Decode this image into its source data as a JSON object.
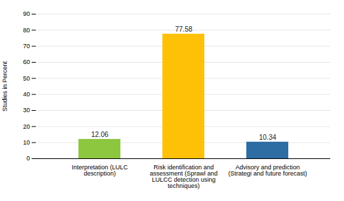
{
  "chart_data": {
    "type": "bar",
    "categories": [
      "Interpretation (LULC\ndescription)",
      "Risk identification and\nassessment (Sprawl and\nLULCC detection using\ntechniques)",
      "Advisory and prediction\n(Strategi and future forecast)"
    ],
    "values": [
      12.06,
      77.58,
      10.34
    ],
    "colors": [
      "#8dc63f",
      "#ffc107",
      "#2e6da4"
    ],
    "ylabel": "Studies in Percent",
    "ylim": [
      0,
      90
    ],
    "yticks": [
      0,
      10,
      20,
      30,
      40,
      50,
      60,
      70,
      80,
      90
    ],
    "grid": true,
    "data_labels": true
  }
}
